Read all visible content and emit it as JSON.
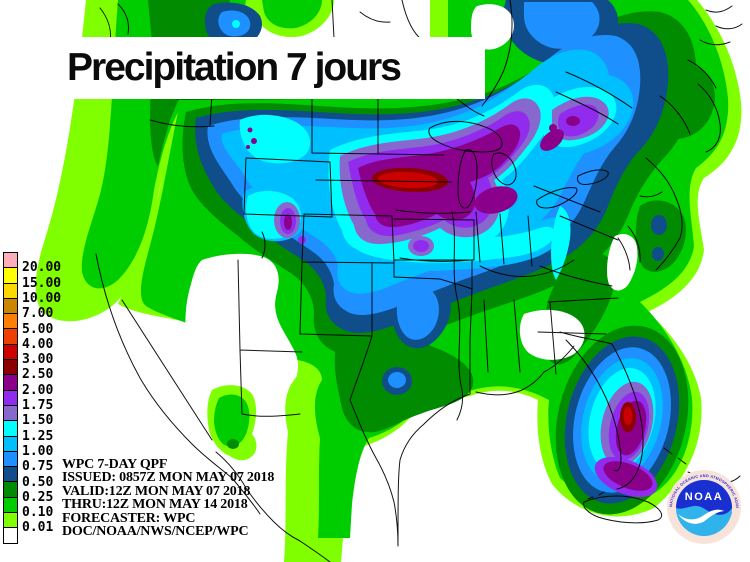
{
  "title": {
    "text": "Precipitation 7 jours"
  },
  "legend": {
    "swatches": [
      {
        "value": "20.00",
        "color": "#FFAEB9"
      },
      {
        "value": "15.00",
        "color": "#FFFF00"
      },
      {
        "value": "10.00",
        "color": "#FFD700"
      },
      {
        "value": "7.00",
        "color": "#CD8500"
      },
      {
        "value": "5.00",
        "color": "#FF7F00"
      },
      {
        "value": "4.00",
        "color": "#EE4000"
      },
      {
        "value": "3.00",
        "color": "#CD0000"
      },
      {
        "value": "2.50",
        "color": "#8B0000"
      },
      {
        "value": "2.00",
        "color": "#8B008B"
      },
      {
        "value": "1.75",
        "color": "#912CEE"
      },
      {
        "value": "1.50",
        "color": "#8968CD"
      },
      {
        "value": "1.25",
        "color": "#00FFFF"
      },
      {
        "value": "1.00",
        "color": "#00BFFF"
      },
      {
        "value": "0.75",
        "color": "#1E90FF"
      },
      {
        "value": "0.50",
        "color": "#104E8B"
      },
      {
        "value": "0.25",
        "color": "#008B00"
      },
      {
        "value": "0.10",
        "color": "#00CD00"
      },
      {
        "value": "0.01",
        "color": "#7FFF00"
      },
      {
        "value": "",
        "color": "#FFFFFF"
      }
    ]
  },
  "footer": {
    "lines": [
      "WPC 7-DAY QPF",
      "ISSUED: 0857Z MON MAY 07 2018",
      "VALID:12Z MON MAY 07 2018",
      "THRU:12Z MON MAY 14 2018",
      "FORECASTER: WPC",
      "DOC/NOAA/NWS/NCEP/WPC"
    ]
  },
  "logo": {
    "acronym": "NOAA",
    "ring_top_text": "NATIONAL OCEANIC AND ATMOSPHERIC ADMINISTRATION",
    "ring_bottom_text": "U.S. DEPARTMENT OF COMMERCE",
    "colors": {
      "ring": "#F8E3DB",
      "top_half": "#1A2FD0",
      "bottom_half": "#2FB3EA",
      "ring_text": "#2A2AD0"
    }
  }
}
